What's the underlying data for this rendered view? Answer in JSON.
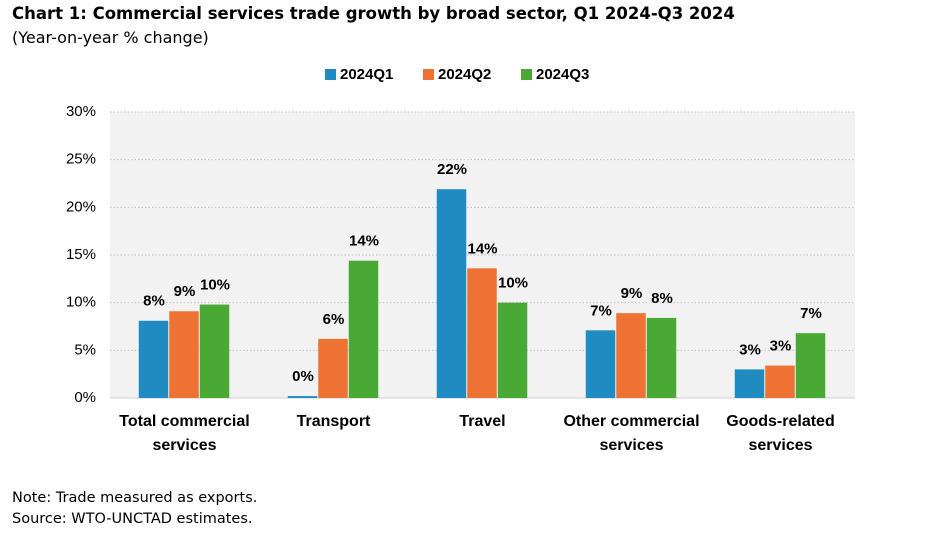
{
  "chart_data": {
    "type": "bar",
    "title": "Chart 1: Commercial services trade growth by broad sector, Q1 2024-Q3 2024",
    "subtitle": "(Year-on-year % change)",
    "categories": [
      "Total commercial services",
      "Transport",
      "Travel",
      "Other commercial services",
      "Goods-related services"
    ],
    "series": [
      {
        "name": "2024Q1",
        "color": "#1f8bc0",
        "values": [
          8.1,
          0.2,
          21.9,
          7.1,
          3.0
        ],
        "value_labels": [
          "8%",
          "0%",
          "22%",
          "7%",
          "3%"
        ]
      },
      {
        "name": "2024Q2",
        "color": "#ed7233",
        "values": [
          9.1,
          6.2,
          13.6,
          8.9,
          3.4
        ],
        "value_labels": [
          "9%",
          "6%",
          "14%",
          "9%",
          "3%"
        ]
      },
      {
        "name": "2024Q3",
        "color": "#4aa834",
        "values": [
          9.8,
          14.4,
          10.0,
          8.4,
          6.8
        ],
        "value_labels": [
          "10%",
          "14%",
          "10%",
          "8%",
          "7%"
        ]
      }
    ],
    "ylim": [
      0,
      30
    ],
    "yticks": [
      {
        "value": 0,
        "label": "0%"
      },
      {
        "value": 5,
        "label": "5%"
      },
      {
        "value": 10,
        "label": "10%"
      },
      {
        "value": 15,
        "label": "15%"
      },
      {
        "value": 20,
        "label": "20%"
      },
      {
        "value": 25,
        "label": "25%"
      },
      {
        "value": 30,
        "label": "30%"
      }
    ],
    "grid": true,
    "legend": "top",
    "notes": [
      "Note: Trade measured as exports.",
      "Source: WTO-UNCTAD estimates."
    ]
  }
}
